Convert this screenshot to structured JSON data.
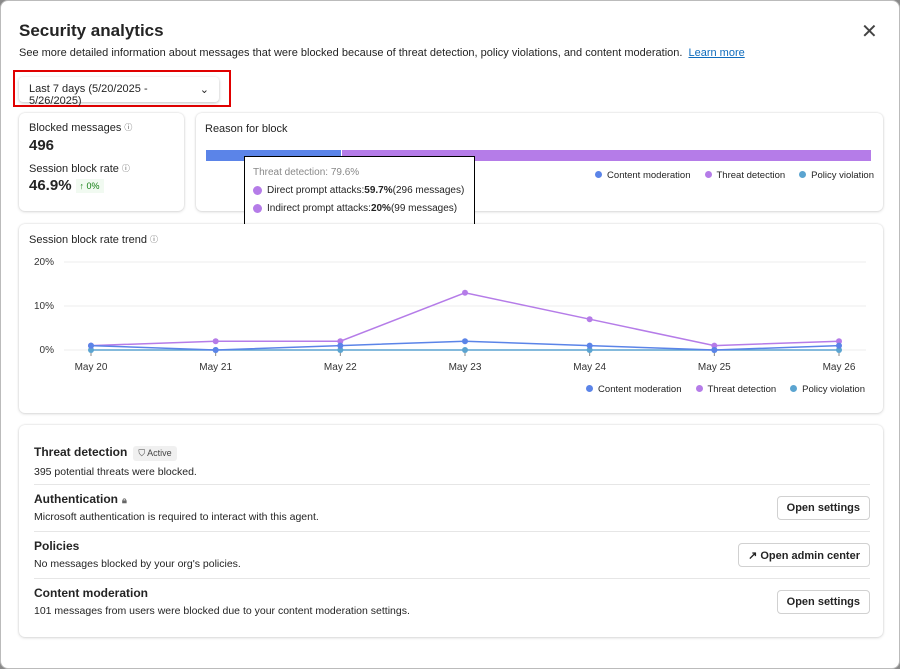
{
  "header": {
    "title": "Security analytics",
    "description": "See more detailed information about messages that were blocked because of threat detection, policy violations, and content moderation.",
    "learn_more": "Learn more",
    "close_icon": "close-icon"
  },
  "date_range": {
    "selected": "Last 7 days (5/20/2025 - 5/26/2025)"
  },
  "stats": {
    "blocked_label": "Blocked messages",
    "blocked_value": "496",
    "rate_label": "Session block rate",
    "rate_value": "46.9%",
    "rate_change": "↑ 0%"
  },
  "reason": {
    "title": "Reason for block",
    "segments": [
      {
        "name": "Content moderation",
        "percent": 20.4,
        "color": "#5b84e8"
      },
      {
        "name": "Threat detection",
        "percent": 79.6,
        "color": "#b57ce8"
      },
      {
        "name": "Policy violation",
        "percent": 0,
        "color": "#5ba4d0"
      }
    ],
    "tooltip": {
      "heading": "Threat detection: 79.6%",
      "rows": [
        {
          "label": "Direct prompt attacks: ",
          "pct": "59.7%",
          "count": " (296 messages)"
        },
        {
          "label": "Indirect prompt attacks: ",
          "pct": "20%",
          "count": " (99 messages)"
        }
      ]
    }
  },
  "chart_data": {
    "type": "line",
    "title": "Session block rate trend",
    "categories": [
      "May 20",
      "May 21",
      "May 22",
      "May 23",
      "May 24",
      "May 25",
      "May 26"
    ],
    "yticks": [
      "0%",
      "10%",
      "20%"
    ],
    "ylim": [
      0,
      20
    ],
    "grid": true,
    "legend": "bottom-right",
    "series": [
      {
        "name": "Content moderation",
        "color": "#5b84e8",
        "values": [
          1,
          0,
          1,
          2,
          1,
          0,
          1
        ]
      },
      {
        "name": "Threat detection",
        "color": "#b57ce8",
        "values": [
          1,
          2,
          2,
          13,
          7,
          1,
          2
        ]
      },
      {
        "name": "Policy violation",
        "color": "#5ba4d0",
        "values": [
          0,
          0,
          0,
          0,
          0,
          0,
          0
        ]
      }
    ]
  },
  "settings": [
    {
      "title": "Threat detection",
      "badge": "Active",
      "text": "395 potential threats were blocked."
    },
    {
      "title": "Authentication",
      "text": "Microsoft authentication is required to interact with this agent.",
      "button": "Open settings"
    },
    {
      "title": "Policies",
      "text": "No messages blocked by your org's policies.",
      "button": "Open admin center"
    },
    {
      "title": "Content moderation",
      "text": "101 messages from users were blocked due to your content moderation settings.",
      "button": "Open settings"
    }
  ]
}
